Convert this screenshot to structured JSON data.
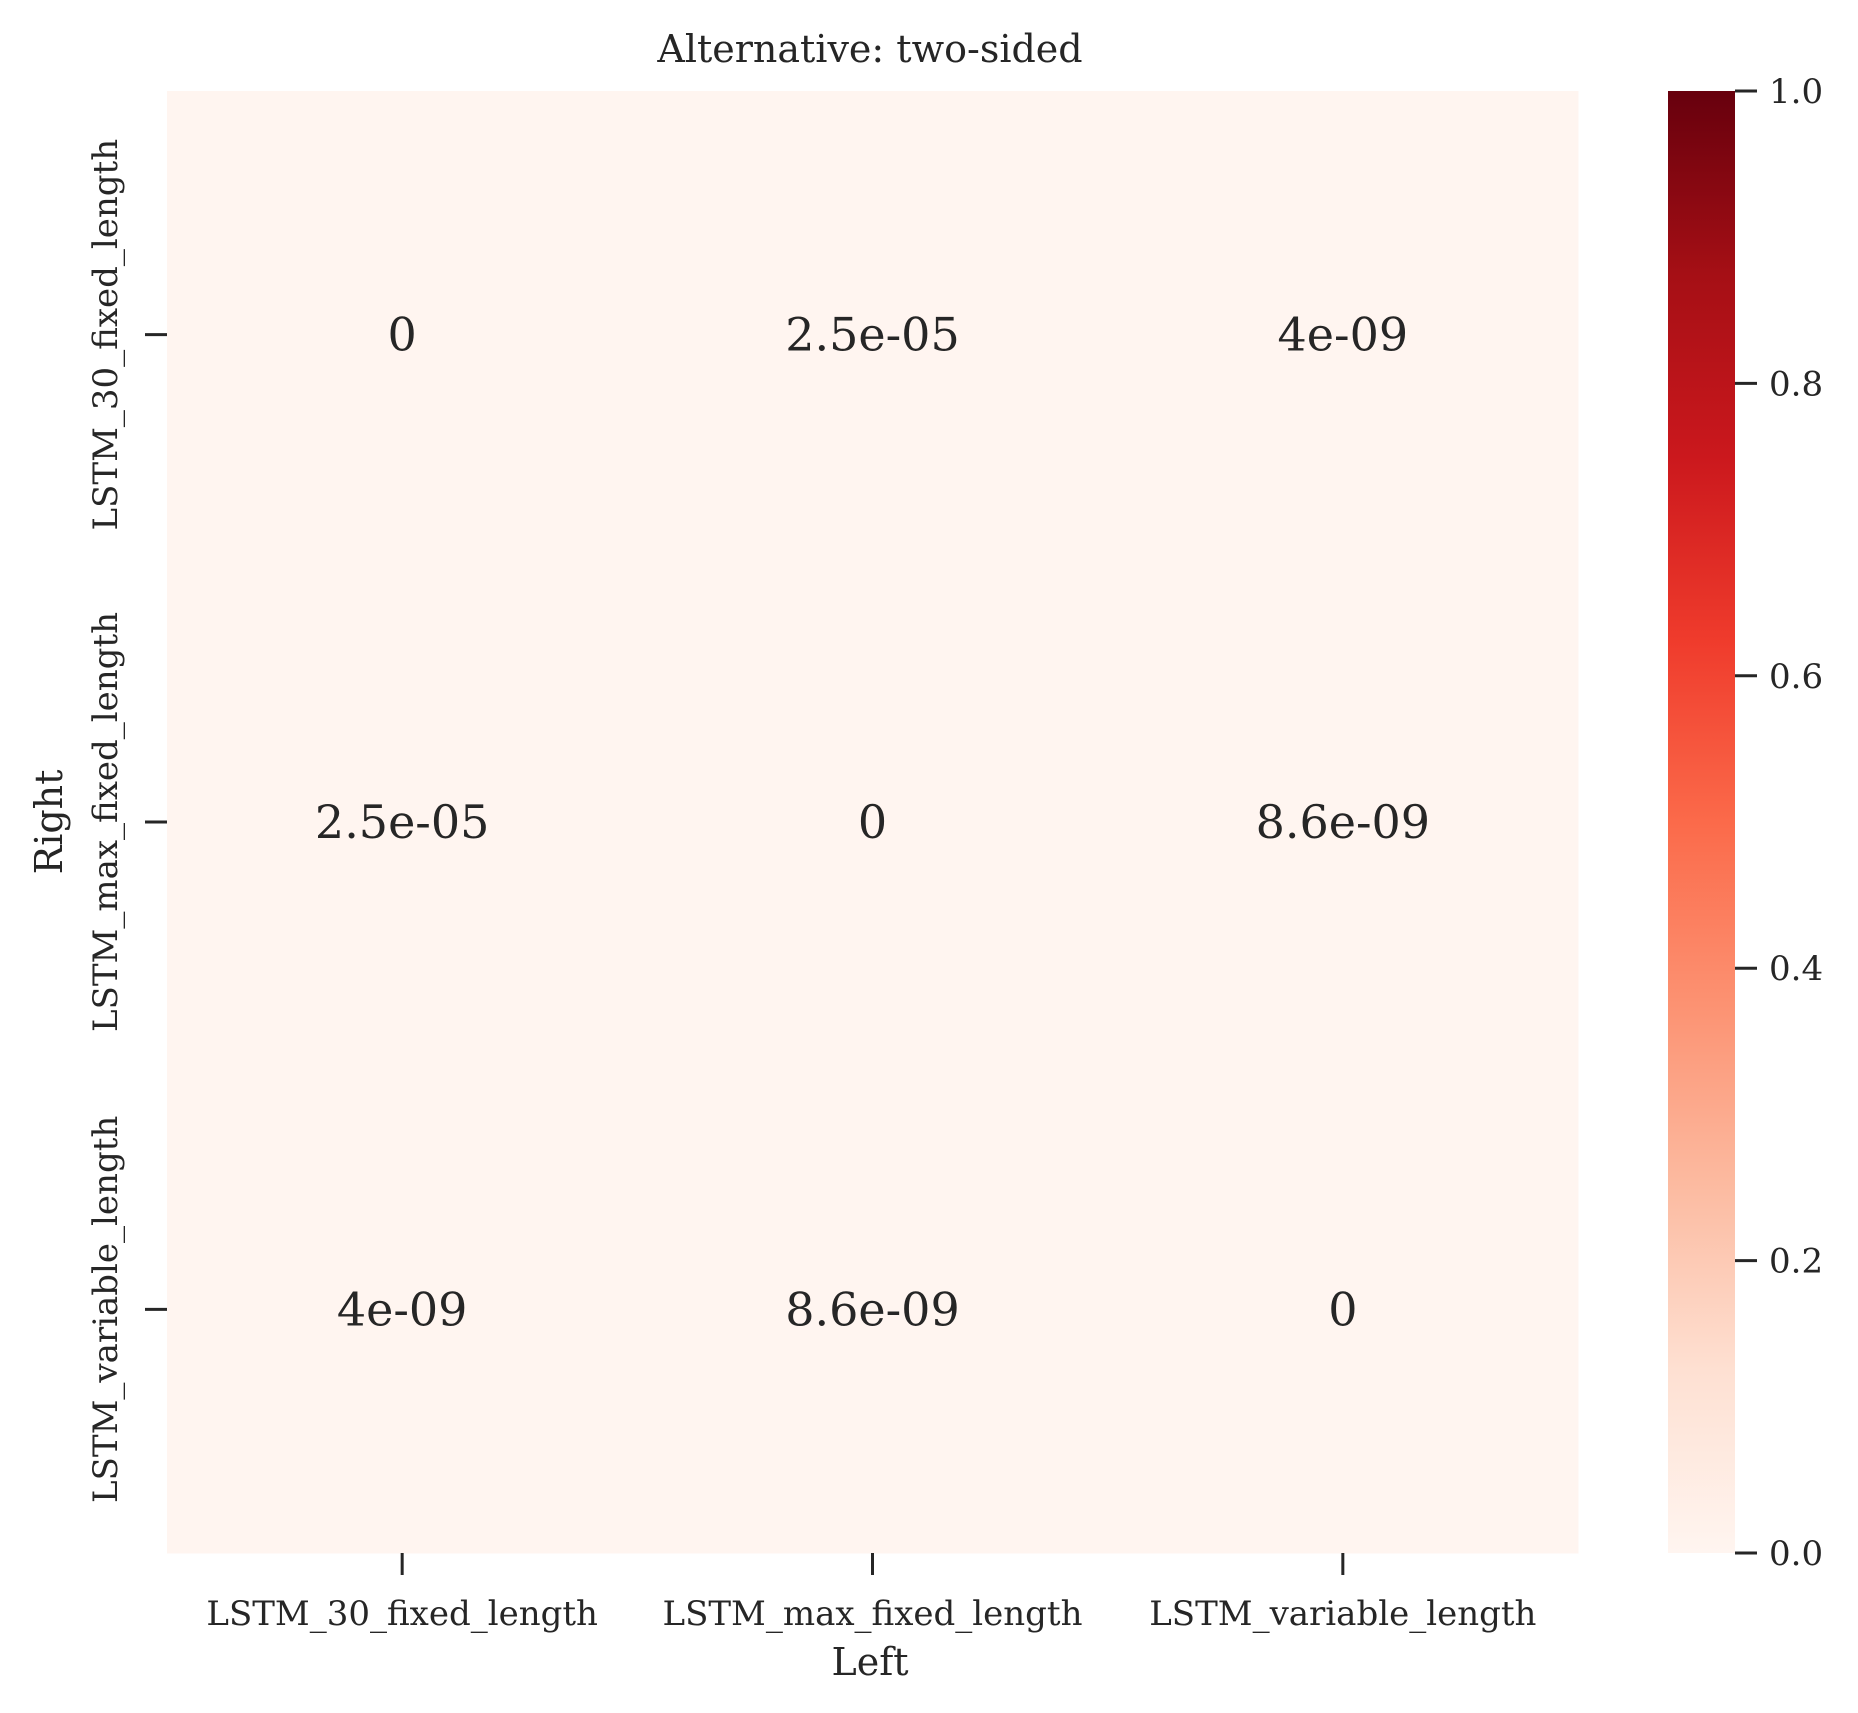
{
  "chart_data": {
    "type": "heatmap",
    "title": "Alternative: two-sided",
    "xlabel": "Left",
    "ylabel": "Right",
    "x_categories": [
      "LSTM_30_fixed_length",
      "LSTM_max_fixed_length",
      "LSTM_variable_length"
    ],
    "y_categories": [
      "LSTM_30_fixed_length",
      "LSTM_max_fixed_length",
      "LSTM_variable_length"
    ],
    "values": [
      [
        0,
        2.5e-05,
        4e-09
      ],
      [
        2.5e-05,
        0,
        8.6e-09
      ],
      [
        4e-09,
        8.6e-09,
        0
      ]
    ],
    "annotations": [
      [
        "0",
        "2.5e-05",
        "4e-09"
      ],
      [
        "2.5e-05",
        "0",
        "8.6e-09"
      ],
      [
        "4e-09",
        "8.6e-09",
        "0"
      ]
    ],
    "colorbar": {
      "colormap": "Reds",
      "range": [
        0.0,
        1.0
      ],
      "ticks": [
        0.0,
        0.2,
        0.4,
        0.6,
        0.8,
        1.0
      ],
      "tick_labels": [
        "0.0",
        "0.2",
        "0.4",
        "0.6",
        "0.8",
        "1.0"
      ],
      "gradient_colors": [
        "#fff5f0",
        "#fee0d2",
        "#fcbba1",
        "#fc9272",
        "#fb6a4a",
        "#ef3b2c",
        "#cb181d",
        "#a50f15",
        "#67000d"
      ]
    }
  }
}
